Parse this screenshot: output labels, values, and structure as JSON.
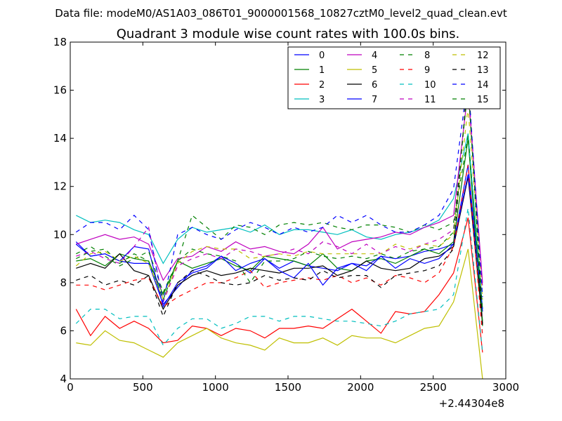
{
  "header": {
    "data_file": "Data file: modeM0/AS1A03_086T01_9000001568_10827cztM0_level2_quad_clean.evt",
    "title": "Quadrant 3 module wise count rates with 100.0s bins."
  },
  "chart_data": {
    "type": "line",
    "title": "Quadrant 3 module wise count rates with 100.0s bins.",
    "xlabel": "",
    "ylabel": "",
    "x_offset_label": "+2.44304e8",
    "xlim": [
      0,
      3000
    ],
    "ylim": [
      4,
      18
    ],
    "xticks": [
      0,
      500,
      1000,
      1500,
      2000,
      2500,
      3000
    ],
    "yticks": [
      4,
      6,
      8,
      10,
      12,
      14,
      16,
      18
    ],
    "grid": false,
    "legend_position": "top-right",
    "legend_columns": 4,
    "x": [
      40,
      140,
      240,
      340,
      440,
      540,
      640,
      740,
      840,
      940,
      1040,
      1140,
      1240,
      1340,
      1440,
      1540,
      1640,
      1740,
      1840,
      1940,
      2040,
      2140,
      2240,
      2340,
      2440,
      2540,
      2640,
      2740,
      2840
    ],
    "series": [
      {
        "name": "0",
        "color": "#0000ff",
        "dash": "solid",
        "values": [
          9.7,
          9.1,
          9.2,
          8.9,
          8.8,
          8.8,
          7.1,
          7.8,
          8.5,
          8.7,
          9.1,
          8.8,
          8.4,
          9.0,
          8.6,
          8.9,
          8.7,
          8.6,
          8.5,
          8.8,
          8.7,
          9.1,
          9.0,
          9.1,
          9.3,
          9.4,
          9.6,
          12.9,
          6.8
        ]
      },
      {
        "name": "1",
        "color": "#008000",
        "dash": "solid",
        "values": [
          8.9,
          9.0,
          8.7,
          9.2,
          9.0,
          8.9,
          7.5,
          8.9,
          8.6,
          8.8,
          9.0,
          8.7,
          8.5,
          9.1,
          9.0,
          8.9,
          8.7,
          9.2,
          8.6,
          8.5,
          8.9,
          9.0,
          8.8,
          9.1,
          9.4,
          9.2,
          9.7,
          14.0,
          6.2
        ]
      },
      {
        "name": "2",
        "color": "#ff0000",
        "dash": "solid",
        "values": [
          6.9,
          5.8,
          6.6,
          6.1,
          6.4,
          6.1,
          5.5,
          5.6,
          6.2,
          6.1,
          5.8,
          6.1,
          6.0,
          5.7,
          6.1,
          6.1,
          6.2,
          6.1,
          6.5,
          6.9,
          6.4,
          5.9,
          6.8,
          6.7,
          6.8,
          7.5,
          8.4,
          10.7,
          5.1
        ]
      },
      {
        "name": "3",
        "color": "#00bfbf",
        "dash": "solid",
        "values": [
          10.8,
          10.5,
          10.6,
          10.5,
          10.2,
          10.0,
          8.8,
          9.8,
          10.3,
          10.1,
          10.2,
          10.3,
          10.1,
          10.4,
          10.0,
          10.2,
          10.2,
          10.1,
          10.0,
          10.2,
          9.9,
          9.8,
          10.0,
          10.1,
          10.3,
          10.6,
          11.5,
          14.2,
          6.9
        ]
      },
      {
        "name": "4",
        "color": "#bf00bf",
        "dash": "solid",
        "values": [
          9.6,
          9.8,
          10.0,
          9.8,
          9.9,
          9.6,
          8.1,
          9.0,
          9.1,
          9.5,
          9.3,
          9.7,
          9.4,
          9.5,
          9.3,
          9.2,
          9.6,
          10.3,
          9.4,
          9.7,
          9.8,
          9.9,
          10.1,
          10.0,
          10.3,
          10.5,
          10.8,
          16.0,
          8.0
        ]
      },
      {
        "name": "5",
        "color": "#bfbf00",
        "dash": "solid",
        "values": [
          5.5,
          5.4,
          6.0,
          5.6,
          5.5,
          5.2,
          4.9,
          5.5,
          5.8,
          6.1,
          5.7,
          5.5,
          5.4,
          5.2,
          5.7,
          5.5,
          5.5,
          5.7,
          5.4,
          5.8,
          5.7,
          5.7,
          5.5,
          5.8,
          6.1,
          6.2,
          7.2,
          9.4,
          4.0
        ]
      },
      {
        "name": "6",
        "color": "#000000",
        "dash": "solid",
        "values": [
          8.6,
          8.8,
          8.6,
          9.2,
          8.5,
          8.3,
          6.9,
          7.9,
          8.3,
          8.5,
          8.3,
          8.4,
          8.6,
          8.5,
          8.4,
          8.6,
          8.6,
          8.7,
          8.3,
          8.5,
          8.9,
          8.6,
          8.5,
          8.6,
          9.0,
          9.1,
          9.5,
          12.4,
          6.3
        ]
      },
      {
        "name": "7",
        "color": "#0000ff",
        "dash": "solid",
        "values": [
          9.6,
          9.1,
          9.2,
          8.9,
          9.5,
          9.4,
          7.0,
          8.0,
          8.4,
          8.6,
          9.1,
          8.5,
          8.8,
          9.0,
          8.5,
          8.2,
          8.8,
          7.9,
          8.6,
          8.8,
          8.5,
          9.1,
          8.6,
          9.0,
          8.8,
          9.0,
          9.6,
          12.5,
          6.9
        ]
      },
      {
        "name": "8",
        "color": "#008000",
        "dash": "dashed",
        "values": [
          9.2,
          9.5,
          9.1,
          8.7,
          9.0,
          9.3,
          7.6,
          8.9,
          10.8,
          10.3,
          9.8,
          10.4,
          10.3,
          10.0,
          10.4,
          10.5,
          10.4,
          10.5,
          10.3,
          10.2,
          10.4,
          10.4,
          10.3,
          10.1,
          10.4,
          10.2,
          10.5,
          14.1,
          6.4
        ]
      },
      {
        "name": "9",
        "color": "#ff0000",
        "dash": "dashed",
        "values": [
          7.9,
          7.9,
          7.7,
          7.9,
          8.1,
          8.2,
          7.0,
          7.4,
          7.7,
          8.0,
          8.0,
          8.2,
          8.5,
          7.8,
          8.0,
          8.1,
          8.2,
          8.1,
          8.3,
          8.0,
          8.2,
          7.9,
          8.3,
          8.2,
          8.0,
          8.4,
          9.5,
          12.9,
          5.8
        ]
      },
      {
        "name": "10",
        "color": "#00bfbf",
        "dash": "dashed",
        "values": [
          6.3,
          6.9,
          6.9,
          6.5,
          6.6,
          6.6,
          5.4,
          6.1,
          6.5,
          6.5,
          6.1,
          6.3,
          6.6,
          6.6,
          6.4,
          6.6,
          6.6,
          6.5,
          6.4,
          6.4,
          6.3,
          6.2,
          6.4,
          6.7,
          6.8,
          6.9,
          7.5,
          11.1,
          5.1
        ]
      },
      {
        "name": "11",
        "color": "#bf00bf",
        "dash": "dashed",
        "values": [
          9.1,
          9.3,
          9.0,
          8.8,
          9.5,
          10.3,
          7.2,
          8.7,
          9.0,
          9.2,
          9.0,
          9.4,
          9.3,
          9.1,
          9.2,
          9.4,
          9.2,
          9.7,
          9.5,
          9.2,
          9.6,
          9.2,
          9.5,
          9.3,
          9.6,
          9.8,
          10.2,
          16.3,
          7.8
        ]
      },
      {
        "name": "12",
        "color": "#bfbf00",
        "dash": "dashed",
        "values": [
          8.7,
          9.2,
          9.3,
          8.9,
          9.1,
          8.8,
          7.3,
          8.8,
          9.3,
          9.5,
          9.4,
          9.4,
          9.0,
          9.1,
          9.2,
          9.1,
          9.3,
          9.2,
          9.2,
          9.2,
          9.2,
          9.2,
          9.6,
          9.4,
          9.6,
          9.5,
          10.0,
          15.3,
          7.3
        ]
      },
      {
        "name": "13",
        "color": "#000000",
        "dash": "dashed",
        "values": [
          8.1,
          8.3,
          7.9,
          8.1,
          7.9,
          8.3,
          6.6,
          8.0,
          8.5,
          8.3,
          8.0,
          7.9,
          8.0,
          8.3,
          8.1,
          8.2,
          8.1,
          8.5,
          8.2,
          8.3,
          8.3,
          7.8,
          8.3,
          8.4,
          8.5,
          8.7,
          9.4,
          16.7,
          6.2
        ]
      },
      {
        "name": "14",
        "color": "#0000ff",
        "dash": "dashed",
        "values": [
          10.1,
          10.5,
          10.5,
          10.2,
          10.8,
          10.2,
          7.2,
          10.0,
          10.3,
          10.0,
          9.8,
          10.2,
          10.5,
          10.3,
          10.0,
          10.3,
          10.1,
          10.3,
          10.8,
          10.5,
          10.8,
          10.4,
          10.1,
          10.1,
          10.4,
          10.8,
          11.9,
          16.5,
          7.4
        ]
      },
      {
        "name": "15",
        "color": "#008000",
        "dash": "dashed",
        "values": [
          9.0,
          9.3,
          9.4,
          8.8,
          9.2,
          8.9,
          7.3,
          8.9,
          9.4,
          9.2,
          9.1,
          8.9,
          8.0,
          8.9,
          8.9,
          9.0,
          9.3,
          9.1,
          9.0,
          9.1,
          9.0,
          9.2,
          9.0,
          9.3,
          9.4,
          9.5,
          10.1,
          16.2,
          6.8
        ]
      }
    ]
  }
}
